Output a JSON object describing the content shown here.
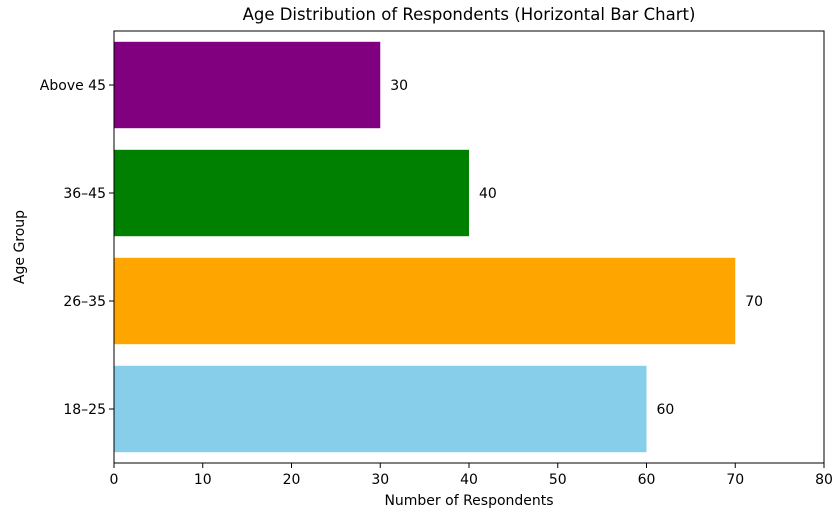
{
  "chart_data": {
    "type": "bar",
    "orientation": "horizontal",
    "title": "Age Distribution of Respondents (Horizontal Bar Chart)",
    "xlabel": "Number of Respondents",
    "ylabel": "Age Group",
    "categories": [
      "18–25",
      "26–35",
      "36–45",
      "Above 45"
    ],
    "values": [
      60,
      70,
      40,
      30
    ],
    "data_labels": [
      "60",
      "70",
      "40",
      "30"
    ],
    "colors": [
      "#87ceeb",
      "#ffa500",
      "#008000",
      "#800080"
    ],
    "xlim": [
      0,
      80
    ],
    "xticks": [
      0,
      10,
      20,
      30,
      40,
      50,
      60,
      70,
      80
    ],
    "xtick_labels": [
      "0",
      "10",
      "20",
      "30",
      "40",
      "50",
      "60",
      "70",
      "80"
    ],
    "grid": false,
    "legend": "none"
  }
}
